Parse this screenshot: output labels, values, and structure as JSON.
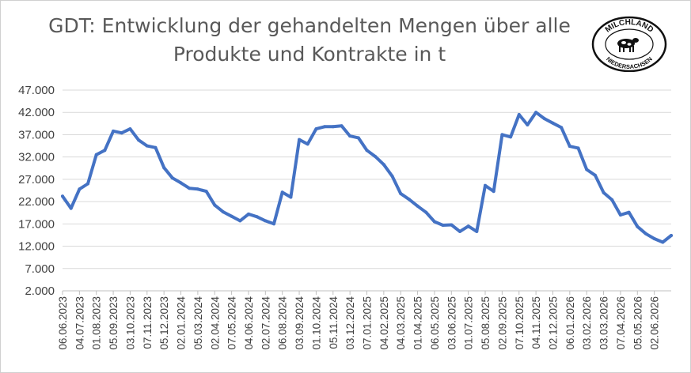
{
  "chart_data": {
    "type": "line",
    "title_lines": [
      "GDT: Entwicklung der gehandelten Mengen über alle",
      "Produkte und Kontrakte in t"
    ],
    "xlabel": "",
    "ylabel": "",
    "ylim": [
      2000,
      47000
    ],
    "y_ticks": [
      "47.000",
      "42.000",
      "37.000",
      "32.000",
      "27.000",
      "22.000",
      "17.000",
      "12.000",
      "7.000",
      "2.000"
    ],
    "y_tick_values": [
      47000,
      42000,
      37000,
      32000,
      27000,
      22000,
      17000,
      12000,
      7000,
      2000
    ],
    "x_tick_labels": [
      "06.06.2023",
      "04.07.2023",
      "01.08.2023",
      "05.09.2023",
      "03.10.2023",
      "07.11.2023",
      "05.12.2023",
      "02.01.2024",
      "05.03.2024",
      "02.04.2024",
      "07.05.2024",
      "04.06.2024",
      "02.07.2024",
      "06.08.2024",
      "03.09.2024",
      "01.10.2024",
      "05.11.2024",
      "03.12.2024",
      "07.01.2025",
      "04.02.2025",
      "04.03.2025",
      "01.04.2025",
      "06.05.2025",
      "03.06.2025",
      "01.07.2025",
      "05.08.2025",
      "02.09.2025",
      "07.10.2025",
      "04.11.2025",
      "02.12.2025",
      "06.01.2026",
      "03.02.2026",
      "03.03.2026",
      "07.04.2026",
      "05.05.2026",
      "02.06.2026"
    ],
    "x_tick_positions": [
      0,
      2,
      4,
      6,
      8,
      10,
      12,
      14,
      16,
      18,
      20,
      22,
      24,
      26,
      28,
      30,
      32,
      34,
      36,
      38,
      40,
      42,
      44,
      46,
      48,
      50,
      52,
      54,
      56,
      58,
      60,
      62,
      64,
      66,
      68,
      70
    ],
    "grid": true,
    "legend": "none",
    "series": [
      {
        "color": "#4472c4",
        "values": [
          23200,
          20500,
          24800,
          26000,
          32500,
          33500,
          37800,
          37400,
          38300,
          35800,
          34500,
          34100,
          29600,
          27300,
          26200,
          25000,
          24800,
          24300,
          21200,
          19700,
          18700,
          17700,
          19200,
          18600,
          17700,
          17000,
          24100,
          23000,
          35900,
          34900,
          38300,
          38800,
          38800,
          39000,
          36700,
          36300,
          33500,
          32100,
          30300,
          27700,
          23800,
          22500,
          21000,
          19600,
          17500,
          16700,
          16800,
          15300,
          16500,
          15300,
          25600,
          24300,
          37000,
          36500,
          41500,
          39200,
          42000,
          40600,
          39600,
          38600,
          34400,
          34000,
          29200,
          27900,
          24000,
          22400,
          19000,
          19600,
          16400,
          14800,
          13700,
          12900,
          14400
        ]
      }
    ]
  },
  "logo": {
    "text_top": "MILCHLAND",
    "text_bottom": "NIEDERSACHSEN",
    "colors": {
      "ring": "#111111",
      "text": "#111111",
      "background": "#ffffff"
    }
  },
  "colors": {
    "line": "#4472c4",
    "grid": "#d9d9d9",
    "axis_text": "#404040",
    "title_text": "#595959"
  }
}
